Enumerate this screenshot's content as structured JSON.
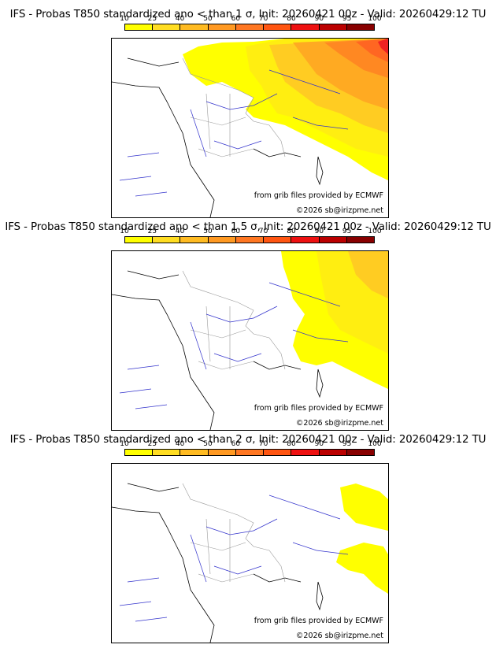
{
  "panels": [
    {
      "title": "IFS - Probas T850  standardized ano < than 1 σ, Init: 20260421 00z - Valid: 20260429:12 TU",
      "threshold_sigma": "1 σ",
      "source_note": "from grib files provided by ECMWF",
      "copyright": "©2026 sb@irizpme.net"
    },
    {
      "title": "IFS - Probas T850  standardized ano < than 1.5 σ, Init: 20260421 00z - Valid: 20260429:12 TU",
      "threshold_sigma": "1.5 σ",
      "source_note": "from grib files provided by ECMWF",
      "copyright": "©2026 sb@irizpme.net"
    },
    {
      "title": "IFS - Probas T850  standardized ano < than 2 σ, Init: 20260421 00z - Valid: 20260429:12 TU",
      "threshold_sigma": "2 σ",
      "source_note": "from grib files provided by ECMWF",
      "copyright": "©2026 sb@irizpme.net"
    }
  ],
  "legend": {
    "labels": [
      "10",
      "25",
      "40",
      "50",
      "60",
      "70",
      "80",
      "90",
      "95",
      "100"
    ],
    "colors": [
      "#ffff00",
      "#ffdd22",
      "#ffbb22",
      "#ff9922",
      "#ff7722",
      "#ff5511",
      "#ee1111",
      "#bb0000",
      "#880000"
    ]
  },
  "map_colors": {
    "land": "#ffffff",
    "coast": "#000000",
    "borders": "#999999",
    "rivers": "#3333cc",
    "p10": "#ffff00",
    "p25": "#ffee11",
    "p40": "#ffcc22",
    "p50": "#ffaa22",
    "p60": "#ff8822",
    "p70": "#ff6622",
    "p80": "#ee2222"
  }
}
